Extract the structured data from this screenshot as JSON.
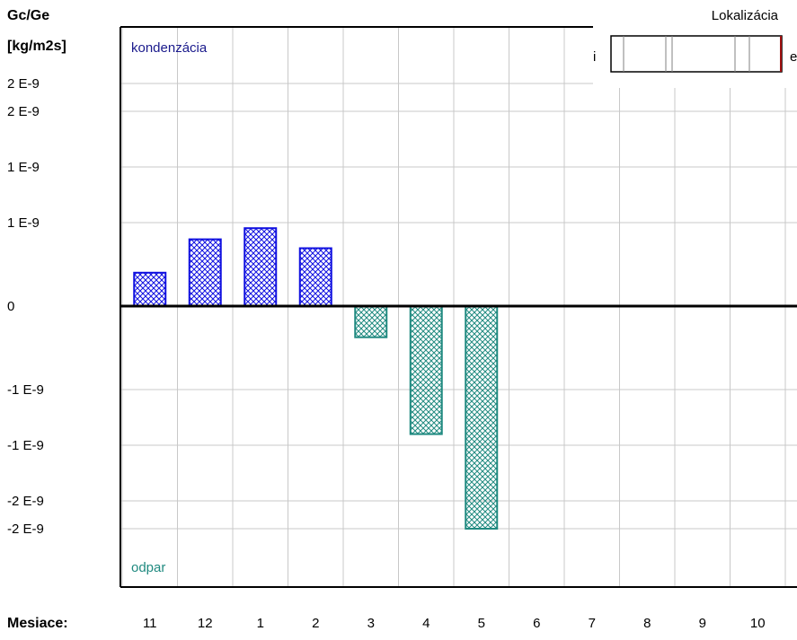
{
  "header": {
    "ylabel_line1": "Gc/Ge",
    "ylabel_line2": "[kg/m2s]",
    "location_title": "Lokalizácia",
    "location_left": "i",
    "location_right": "e"
  },
  "chart_data": {
    "type": "bar",
    "title": "",
    "xlabel": "Mesiace:",
    "ylabel": "Gc/Ge [kg/m2s]",
    "ylim": [
      -2.5,
      2.25
    ],
    "y_unit": "E-9",
    "grid": true,
    "y_tick_values": [
      2.0,
      1.75,
      1.25,
      0.75,
      0,
      -0.75,
      -1.25,
      -1.75,
      -2.0
    ],
    "y_tick_labels": [
      "2 E-9",
      "2 E-9",
      "1 E-9",
      "1 E-9",
      "0",
      "-1 E-9",
      "-1 E-9",
      "-2 E-9",
      "-2 E-9"
    ],
    "categories": [
      "11",
      "12",
      "1",
      "2",
      "3",
      "4",
      "5",
      "6",
      "7",
      "8",
      "9",
      "10"
    ],
    "values": [
      0.3,
      0.6,
      0.7,
      0.52,
      -0.28,
      -1.15,
      -2.0,
      0,
      0,
      0,
      0,
      0
    ],
    "annotations": {
      "top": "kondenzácia",
      "bottom": "odpar"
    },
    "colors": {
      "condensation": "#1010e0",
      "evaporation": "#208a80",
      "grid": "#c8c8c8",
      "axis": "#000000",
      "annotation_top": "#1a1a8c",
      "annotation_bottom": "#208a80",
      "location_marker": "#a01010"
    }
  }
}
